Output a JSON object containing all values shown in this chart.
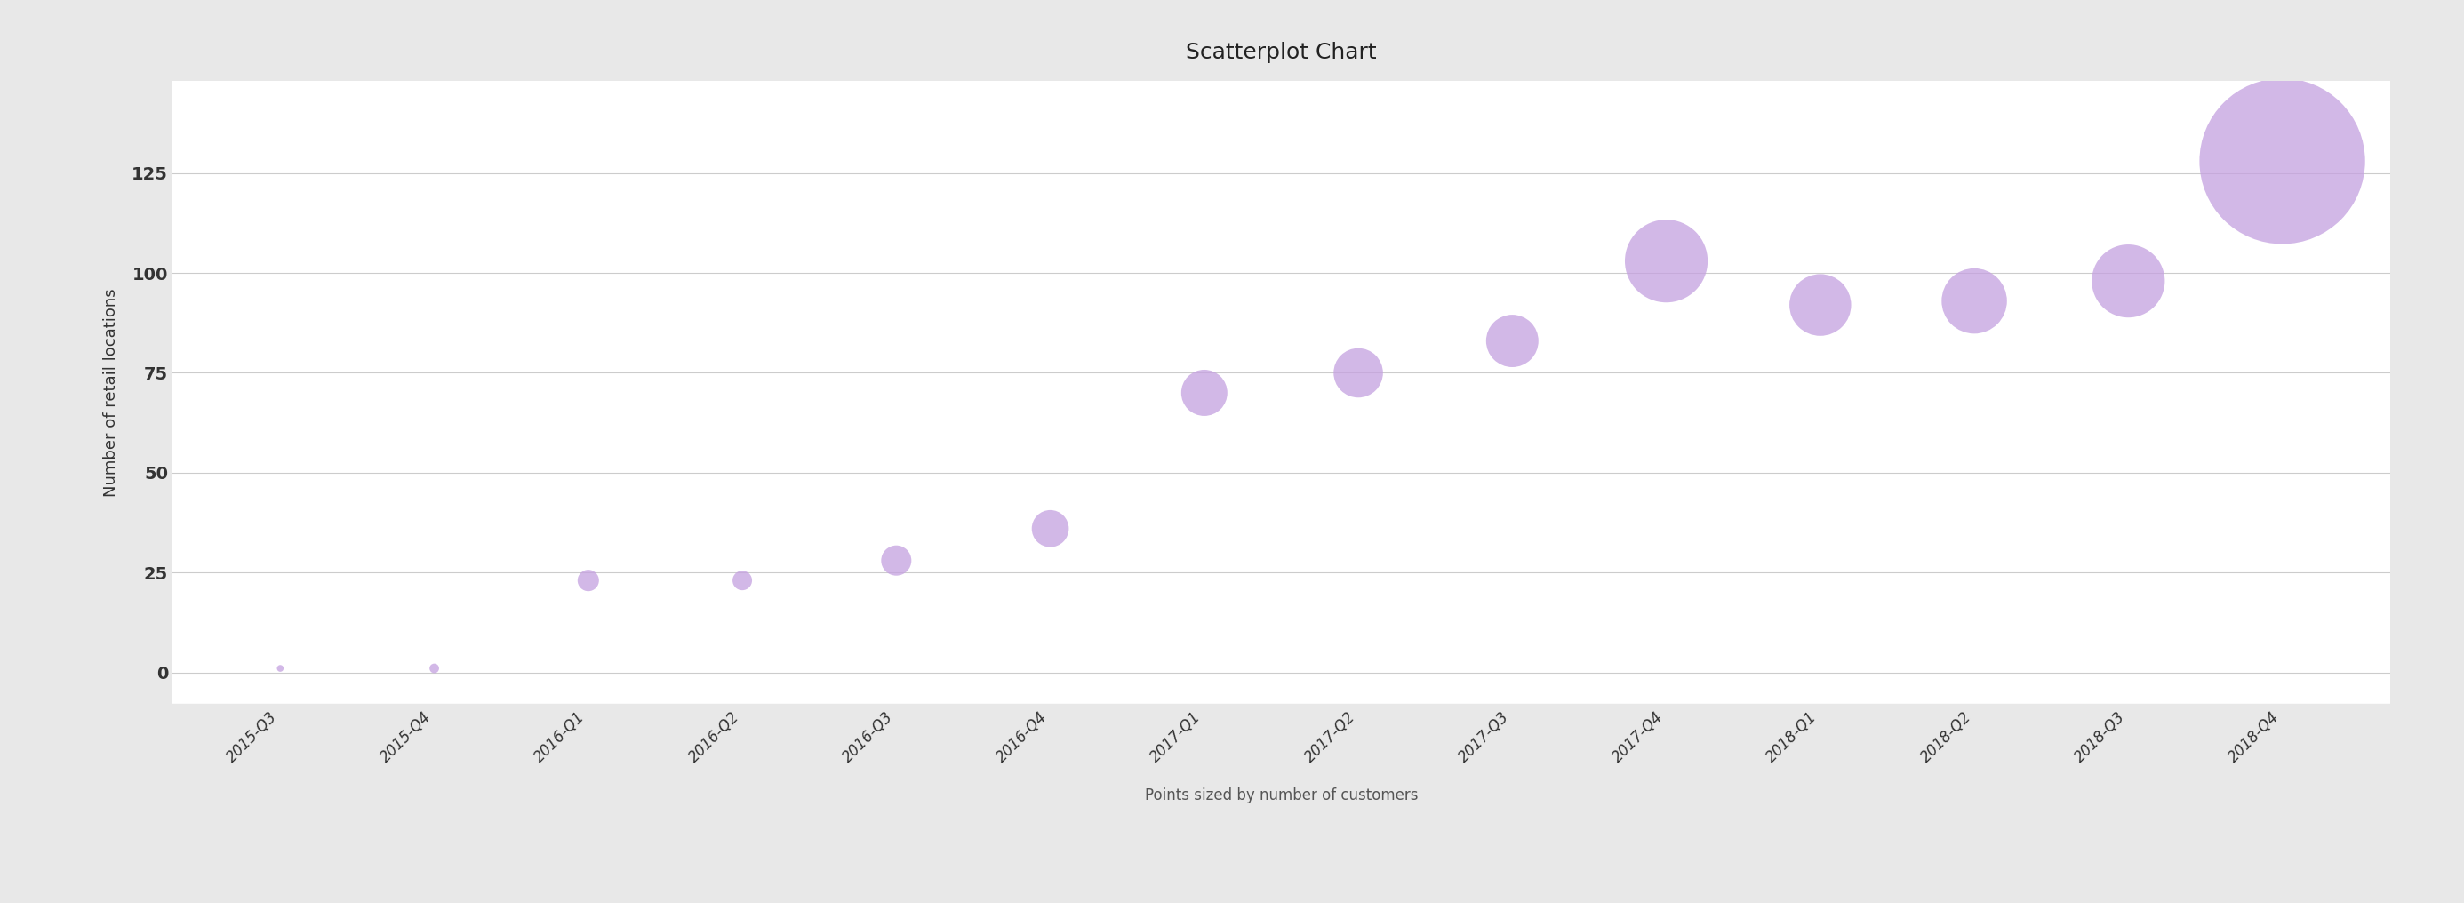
{
  "title": "Scatterplot Chart",
  "xlabel": "Points sized by number of customers",
  "ylabel": "Number of retail locations",
  "background_color": "#e8e8e8",
  "plot_background": "#ffffff",
  "bubble_color": "#c4a0e0",
  "bubble_alpha": 0.75,
  "categories": [
    "2015-Q3",
    "2015-Q4",
    "2016-Q1",
    "2016-Q2",
    "2016-Q3",
    "2016-Q4",
    "2017-Q1",
    "2017-Q2",
    "2017-Q3",
    "2017-Q4",
    "2018-Q1",
    "2018-Q2",
    "2018-Q3",
    "2018-Q4"
  ],
  "y_values": [
    1,
    1,
    23,
    23,
    28,
    36,
    70,
    75,
    83,
    103,
    92,
    93,
    98,
    128
  ],
  "sizes": [
    30,
    60,
    300,
    250,
    600,
    900,
    1400,
    1600,
    1800,
    4500,
    2500,
    2800,
    3500,
    18000
  ],
  "ylim": [
    -8,
    148
  ],
  "yticks": [
    0,
    25,
    50,
    75,
    100,
    125
  ],
  "title_fontsize": 18,
  "axis_label_fontsize": 12,
  "tick_fontsize": 12,
  "ylabel_fontsize": 13
}
